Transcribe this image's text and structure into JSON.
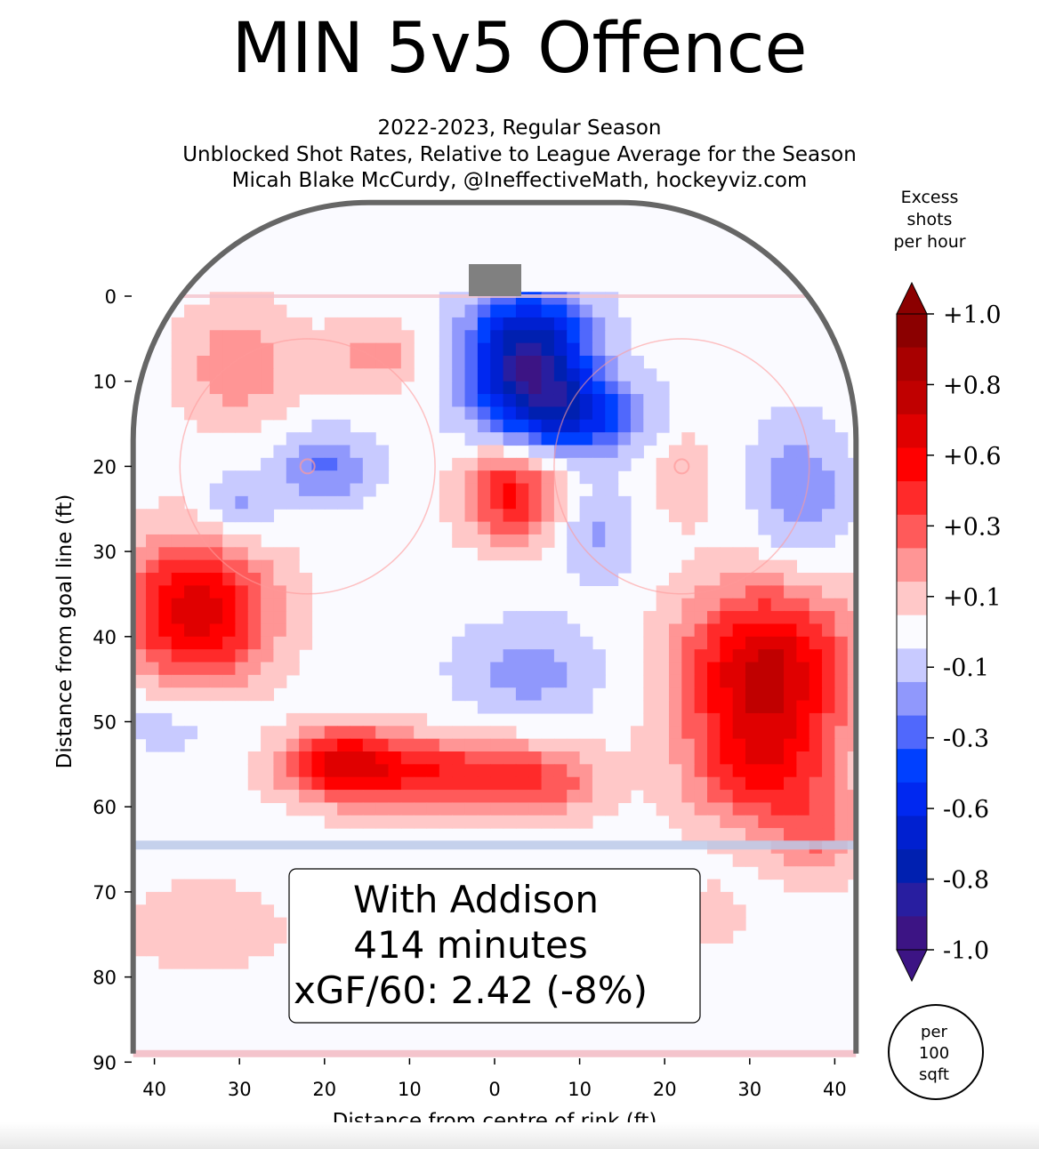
{
  "chart_data": {
    "type": "heatmap",
    "title": "MIN 5v5 Offence",
    "subtitle_lines": [
      "2022-2023, Regular Season",
      "Unblocked Shot Rates, Relative to League Average for the Season",
      "Micah Blake McCurdy, @IneffectiveMath, hockeyviz.com"
    ],
    "xlabel": "Distance from centre of rink (ft)",
    "ylabel": "Distance from goal line (ft)",
    "x_ticks": [
      "40",
      "30",
      "20",
      "10",
      "0",
      "10",
      "20",
      "30",
      "40"
    ],
    "x_tick_values": [
      -40,
      -30,
      -20,
      -10,
      0,
      10,
      20,
      30,
      40
    ],
    "y_ticks": [
      "0",
      "10",
      "20",
      "30",
      "40",
      "50",
      "60",
      "70",
      "80",
      "90"
    ],
    "y_tick_values": [
      0,
      10,
      20,
      30,
      40,
      50,
      60,
      70,
      80,
      90
    ],
    "xlim": [
      -42.5,
      42.5
    ],
    "ylim": [
      -11,
      89
    ],
    "colorbar": {
      "title_lines": [
        "Excess",
        "shots",
        "per hour"
      ],
      "tick_labels": [
        "+1.0",
        "+0.8",
        "+0.6",
        "+0.3",
        "+0.1",
        "-0.1",
        "-0.3",
        "-0.6",
        "-0.8",
        "-1.0"
      ],
      "range": [
        -1.0,
        1.0
      ],
      "colors": [
        "#8b0000",
        "#a80000",
        "#c00000",
        "#e00000",
        "#ff0000",
        "#ff2a2a",
        "#ff5a5a",
        "#ff9595",
        "#ffc8c8",
        "#fbfbff",
        "#c8caff",
        "#9098fc",
        "#5068fc",
        "#0040ff",
        "#0028f0",
        "#0020d0",
        "#0020b0",
        "#281ea0",
        "#3c1484"
      ]
    },
    "unit_badge": [
      "per",
      "100",
      "sqft"
    ],
    "annotation": {
      "line1": "With Addison",
      "line2": "414 minutes",
      "line3": "xGF/60: 2.42 (-8%)"
    },
    "hotspots": [
      {
        "x": 4,
        "y": 8,
        "value": -0.95,
        "sx": 5,
        "sy": 6
      },
      {
        "x": 11,
        "y": 14,
        "value": -0.45,
        "sx": 5,
        "sy": 3
      },
      {
        "x": 2,
        "y": 23,
        "value": 0.55,
        "sx": 4,
        "sy": 4
      },
      {
        "x": -35,
        "y": 37,
        "value": 0.7,
        "sx": 6,
        "sy": 6
      },
      {
        "x": 32,
        "y": 44,
        "value": 0.75,
        "sx": 7,
        "sy": 7
      },
      {
        "x": 31,
        "y": 56,
        "value": 0.4,
        "sx": 6,
        "sy": 5
      },
      {
        "x": -18,
        "y": 55,
        "value": 0.6,
        "sx": 5,
        "sy": 3
      },
      {
        "x": -6,
        "y": 56,
        "value": 0.45,
        "sx": 7,
        "sy": 3
      },
      {
        "x": 6,
        "y": 57,
        "value": 0.3,
        "sx": 5,
        "sy": 3
      },
      {
        "x": -30,
        "y": 8,
        "value": 0.25,
        "sx": 5,
        "sy": 5
      },
      {
        "x": -14,
        "y": 7,
        "value": 0.22,
        "sx": 4,
        "sy": 3
      },
      {
        "x": -20,
        "y": 20,
        "value": -0.3,
        "sx": 4,
        "sy": 3
      },
      {
        "x": -30,
        "y": 25,
        "value": -0.22,
        "sx": 3,
        "sy": 3
      },
      {
        "x": 4,
        "y": 44,
        "value": -0.22,
        "sx": 6,
        "sy": 4
      },
      {
        "x": 36,
        "y": 23,
        "value": -0.25,
        "sx": 4,
        "sy": 6
      },
      {
        "x": 12,
        "y": 28,
        "value": -0.2,
        "sx": 3,
        "sy": 4
      },
      {
        "x": 22,
        "y": 21,
        "value": 0.15,
        "sx": 2.5,
        "sy": 4
      },
      {
        "x": -38,
        "y": 50,
        "value": -0.12,
        "sx": 6,
        "sy": 3
      },
      {
        "x": -34,
        "y": 74,
        "value": 0.13,
        "sx": 7,
        "sy": 4
      },
      {
        "x": 25,
        "y": 73,
        "value": 0.15,
        "sx": 3,
        "sy": 2.5
      },
      {
        "x": 38,
        "y": 63,
        "value": 0.25,
        "sx": 4,
        "sy": 4
      }
    ]
  }
}
